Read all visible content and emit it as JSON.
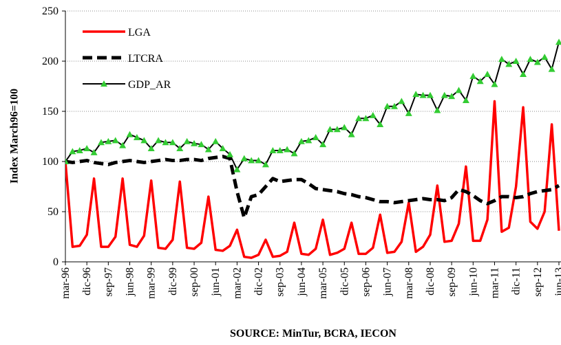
{
  "chart_data": {
    "type": "line",
    "y_label": "Index March96=100",
    "x_label": "SOURCE: MinTur, BCRA, IECON",
    "categories": [
      "mar-96",
      null,
      null,
      "dic-96",
      null,
      null,
      "sep-97",
      null,
      null,
      "jun-98",
      null,
      null,
      "mar-99",
      null,
      null,
      "dic-99",
      null,
      null,
      "sep-00",
      null,
      null,
      "jun-01",
      null,
      null,
      "mar-02",
      null,
      null,
      "dic-02",
      null,
      null,
      "sep-03",
      null,
      null,
      "jun-04",
      null,
      null,
      "mar-05",
      null,
      null,
      "dic-05",
      null,
      null,
      "sep-06",
      null,
      null,
      "jun-07",
      null,
      null,
      "mar-08",
      null,
      null,
      "dic-08",
      null,
      null,
      "sep-09",
      null,
      null,
      "jun-10",
      null,
      null,
      "mar-11",
      null,
      null,
      "dic-11",
      null,
      null,
      "sep-12",
      null,
      null,
      "jun-13"
    ],
    "ylim": [
      0,
      250
    ],
    "yticks": [
      0,
      50,
      100,
      150,
      200,
      250
    ],
    "grid": true,
    "legend": "upper left",
    "series": [
      {
        "name": "LGA",
        "color": "#ff0000",
        "style": "solid",
        "values": [
          100,
          15,
          16,
          27,
          83,
          15,
          15,
          25,
          83,
          17,
          15,
          26,
          81,
          14,
          13,
          22,
          80,
          14,
          13,
          19,
          65,
          12,
          11,
          16,
          32,
          5,
          4,
          7,
          22,
          5,
          6,
          10,
          39,
          8,
          7,
          13,
          42,
          7,
          9,
          13,
          39,
          8,
          8,
          14,
          47,
          9,
          10,
          20,
          59,
          10,
          15,
          27,
          76,
          20,
          21,
          38,
          95,
          21,
          21,
          42,
          160,
          30,
          34,
          75,
          154,
          40,
          33,
          50,
          137,
          31
        ]
      },
      {
        "name": "LTCRA",
        "color": "#000000",
        "style": "dashed",
        "values": [
          100,
          99,
          100,
          101,
          99,
          98,
          97,
          99,
          100,
          101,
          100,
          99,
          100,
          101,
          102,
          101,
          101,
          102,
          102,
          101,
          103,
          104,
          105,
          103,
          70,
          44,
          65,
          67,
          75,
          83,
          80,
          81,
          82,
          82,
          78,
          73,
          72,
          71,
          70,
          68,
          67,
          65,
          64,
          62,
          60,
          60,
          59,
          60,
          61,
          62,
          63,
          62,
          62,
          61,
          64,
          72,
          70,
          66,
          61,
          58,
          61,
          65,
          65,
          64,
          65,
          68,
          70,
          71,
          72,
          76
        ]
      },
      {
        "name": "GDP_AR",
        "color": "#000000",
        "style": "solid",
        "marker": "triangle",
        "marker_color": "#33cc33",
        "values": [
          100,
          110,
          111,
          113,
          109,
          119,
          120,
          121,
          116,
          127,
          124,
          121,
          113,
          121,
          119,
          119,
          113,
          120,
          118,
          117,
          112,
          120,
          113,
          107,
          92,
          103,
          101,
          101,
          97,
          111,
          111,
          112,
          108,
          120,
          121,
          124,
          117,
          132,
          132,
          134,
          127,
          143,
          143,
          146,
          137,
          155,
          155,
          160,
          148,
          167,
          166,
          166,
          151,
          166,
          165,
          171,
          161,
          185,
          180,
          187,
          177,
          202,
          197,
          200,
          187,
          202,
          199,
          204,
          192,
          219
        ]
      }
    ]
  }
}
